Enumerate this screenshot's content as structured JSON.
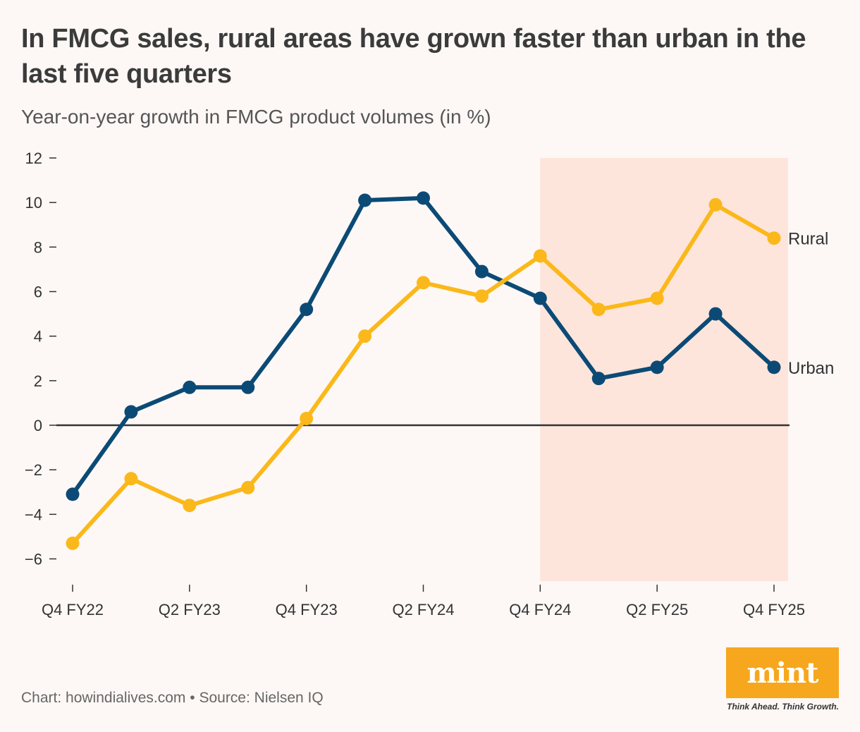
{
  "title": "In FMCG sales, rural areas have grown faster than urban in the last five quarters",
  "subtitle": "Year-on-year growth in FMCG product volumes (in %)",
  "source": "Chart: howindialives.com • Source: Nielsen IQ",
  "logo": {
    "text": "mint",
    "tagline": "Think Ahead. Think Growth."
  },
  "colors": {
    "urban": "#0c4a76",
    "rural": "#fbb81a",
    "highlight": "#fde5db",
    "zero_line": "#333333"
  },
  "chart_data": {
    "type": "line",
    "categories": [
      "Q4 FY22",
      "Q1 FY23",
      "Q2 FY23",
      "Q3 FY23",
      "Q4 FY23",
      "Q1 FY24",
      "Q2 FY24",
      "Q3 FY24",
      "Q4 FY24",
      "Q1 FY25",
      "Q2 FY25",
      "Q3 FY25",
      "Q4 FY25"
    ],
    "x_tick_labels": [
      "Q4 FY22",
      "",
      "Q2 FY23",
      "",
      "Q4 FY23",
      "",
      "Q2 FY24",
      "",
      "Q4 FY24",
      "",
      "Q2 FY25",
      "",
      "Q4 FY25"
    ],
    "series": [
      {
        "name": "Urban",
        "values": [
          -3.1,
          0.6,
          1.7,
          1.7,
          5.2,
          10.1,
          10.2,
          6.9,
          5.7,
          2.1,
          2.6,
          5.0,
          2.6
        ]
      },
      {
        "name": "Rural",
        "values": [
          -5.3,
          -2.4,
          -3.6,
          -2.8,
          0.3,
          4.0,
          6.4,
          5.8,
          7.6,
          5.2,
          5.7,
          9.9,
          8.4
        ]
      }
    ],
    "y_ticks": [
      12,
      10,
      8,
      6,
      4,
      2,
      0,
      -2,
      -4,
      -6
    ],
    "y_tick_labels": [
      "12",
      "10",
      "8",
      "6",
      "4",
      "2",
      "0",
      "−2",
      "−4",
      "−6"
    ],
    "ylim": [
      -7,
      12
    ],
    "highlight_range": [
      "Q4 FY24",
      "Q4 FY25"
    ],
    "xlabel": "",
    "ylabel": ""
  }
}
